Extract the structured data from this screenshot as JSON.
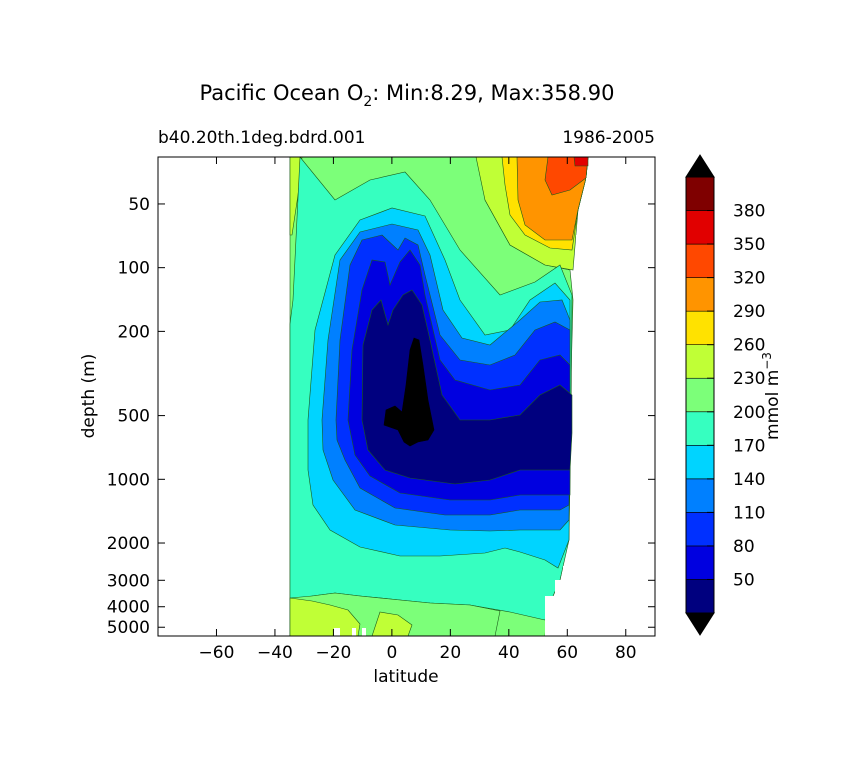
{
  "chart_data": {
    "type": "contourf",
    "title": {
      "prefix": "Pacific Ocean O",
      "subscript": "2",
      "suffix": ": Min:8.29, Max:358.90"
    },
    "subtitle_left": "b40.20th.1deg.bdrd.001",
    "subtitle_right": "1986-2005",
    "xlabel": "latitude",
    "ylabel": "depth (m)",
    "xlim": [
      -80,
      90
    ],
    "xticks": [
      -60,
      -40,
      -20,
      0,
      20,
      40,
      60,
      80
    ],
    "xtick_labels": [
      "−60",
      "−40",
      "−20",
      "0",
      "20",
      "40",
      "60",
      "80"
    ],
    "yscale": "log",
    "ylim": [
      5500,
      30
    ],
    "yticks": [
      50,
      100,
      200,
      500,
      1000,
      2000,
      3000,
      4000,
      5000
    ],
    "ytick_labels": [
      "50",
      "100",
      "200",
      "500",
      "1000",
      "2000",
      "3000",
      "4000",
      "5000"
    ],
    "colorbar": {
      "label_main": "mmol m",
      "label_exp": "−3",
      "extend": "both",
      "levels": [
        20,
        50,
        80,
        110,
        140,
        170,
        200,
        230,
        260,
        290,
        320,
        350,
        380,
        410
      ],
      "tick_values": [
        50,
        80,
        110,
        140,
        170,
        200,
        230,
        260,
        290,
        320,
        350,
        380
      ],
      "tick_labels": [
        "50",
        "80",
        "110",
        "140",
        "170",
        "200",
        "230",
        "260",
        "290",
        "320",
        "350",
        "380"
      ],
      "colors": [
        "#00007f",
        "#0000e0",
        "#0030ff",
        "#0080ff",
        "#00d4ff",
        "#36ffc0",
        "#7cff79",
        "#c0ff36",
        "#ffe200",
        "#ff9400",
        "#ff4800",
        "#e10000",
        "#7f0000"
      ],
      "under_color": "#000000",
      "over_color": "#000000"
    },
    "fields": [
      {
        "level": "200-230",
        "lat_range": [
          -34,
          67
        ],
        "depth_range": [
          30,
          5500
        ]
      },
      {
        "level": "170-200",
        "lat_range": [
          -34,
          62
        ],
        "depth_range": [
          40,
          5400
        ]
      },
      {
        "level": "140-170",
        "lat_range": [
          -27,
          62
        ],
        "depth_range": [
          65,
          2900
        ]
      },
      {
        "level": "110-140",
        "lat_range": [
          -24,
          61
        ],
        "depth_range": [
          100,
          2100
        ]
      },
      {
        "level": "80-110",
        "lat_range": [
          -21,
          61
        ],
        "depth_range": [
          120,
          1700
        ]
      },
      {
        "level": "50-80",
        "lat_range": [
          -18,
          61
        ],
        "depth_range": [
          140,
          1300
        ]
      },
      {
        "level": "20-50",
        "lat_range": [
          -12,
          61
        ],
        "depth_range": [
          260,
          1000
        ]
      },
      {
        "level": "<20",
        "lat_range": [
          -2,
          14
        ],
        "depth_range": [
          300,
          700
        ]
      }
    ]
  }
}
